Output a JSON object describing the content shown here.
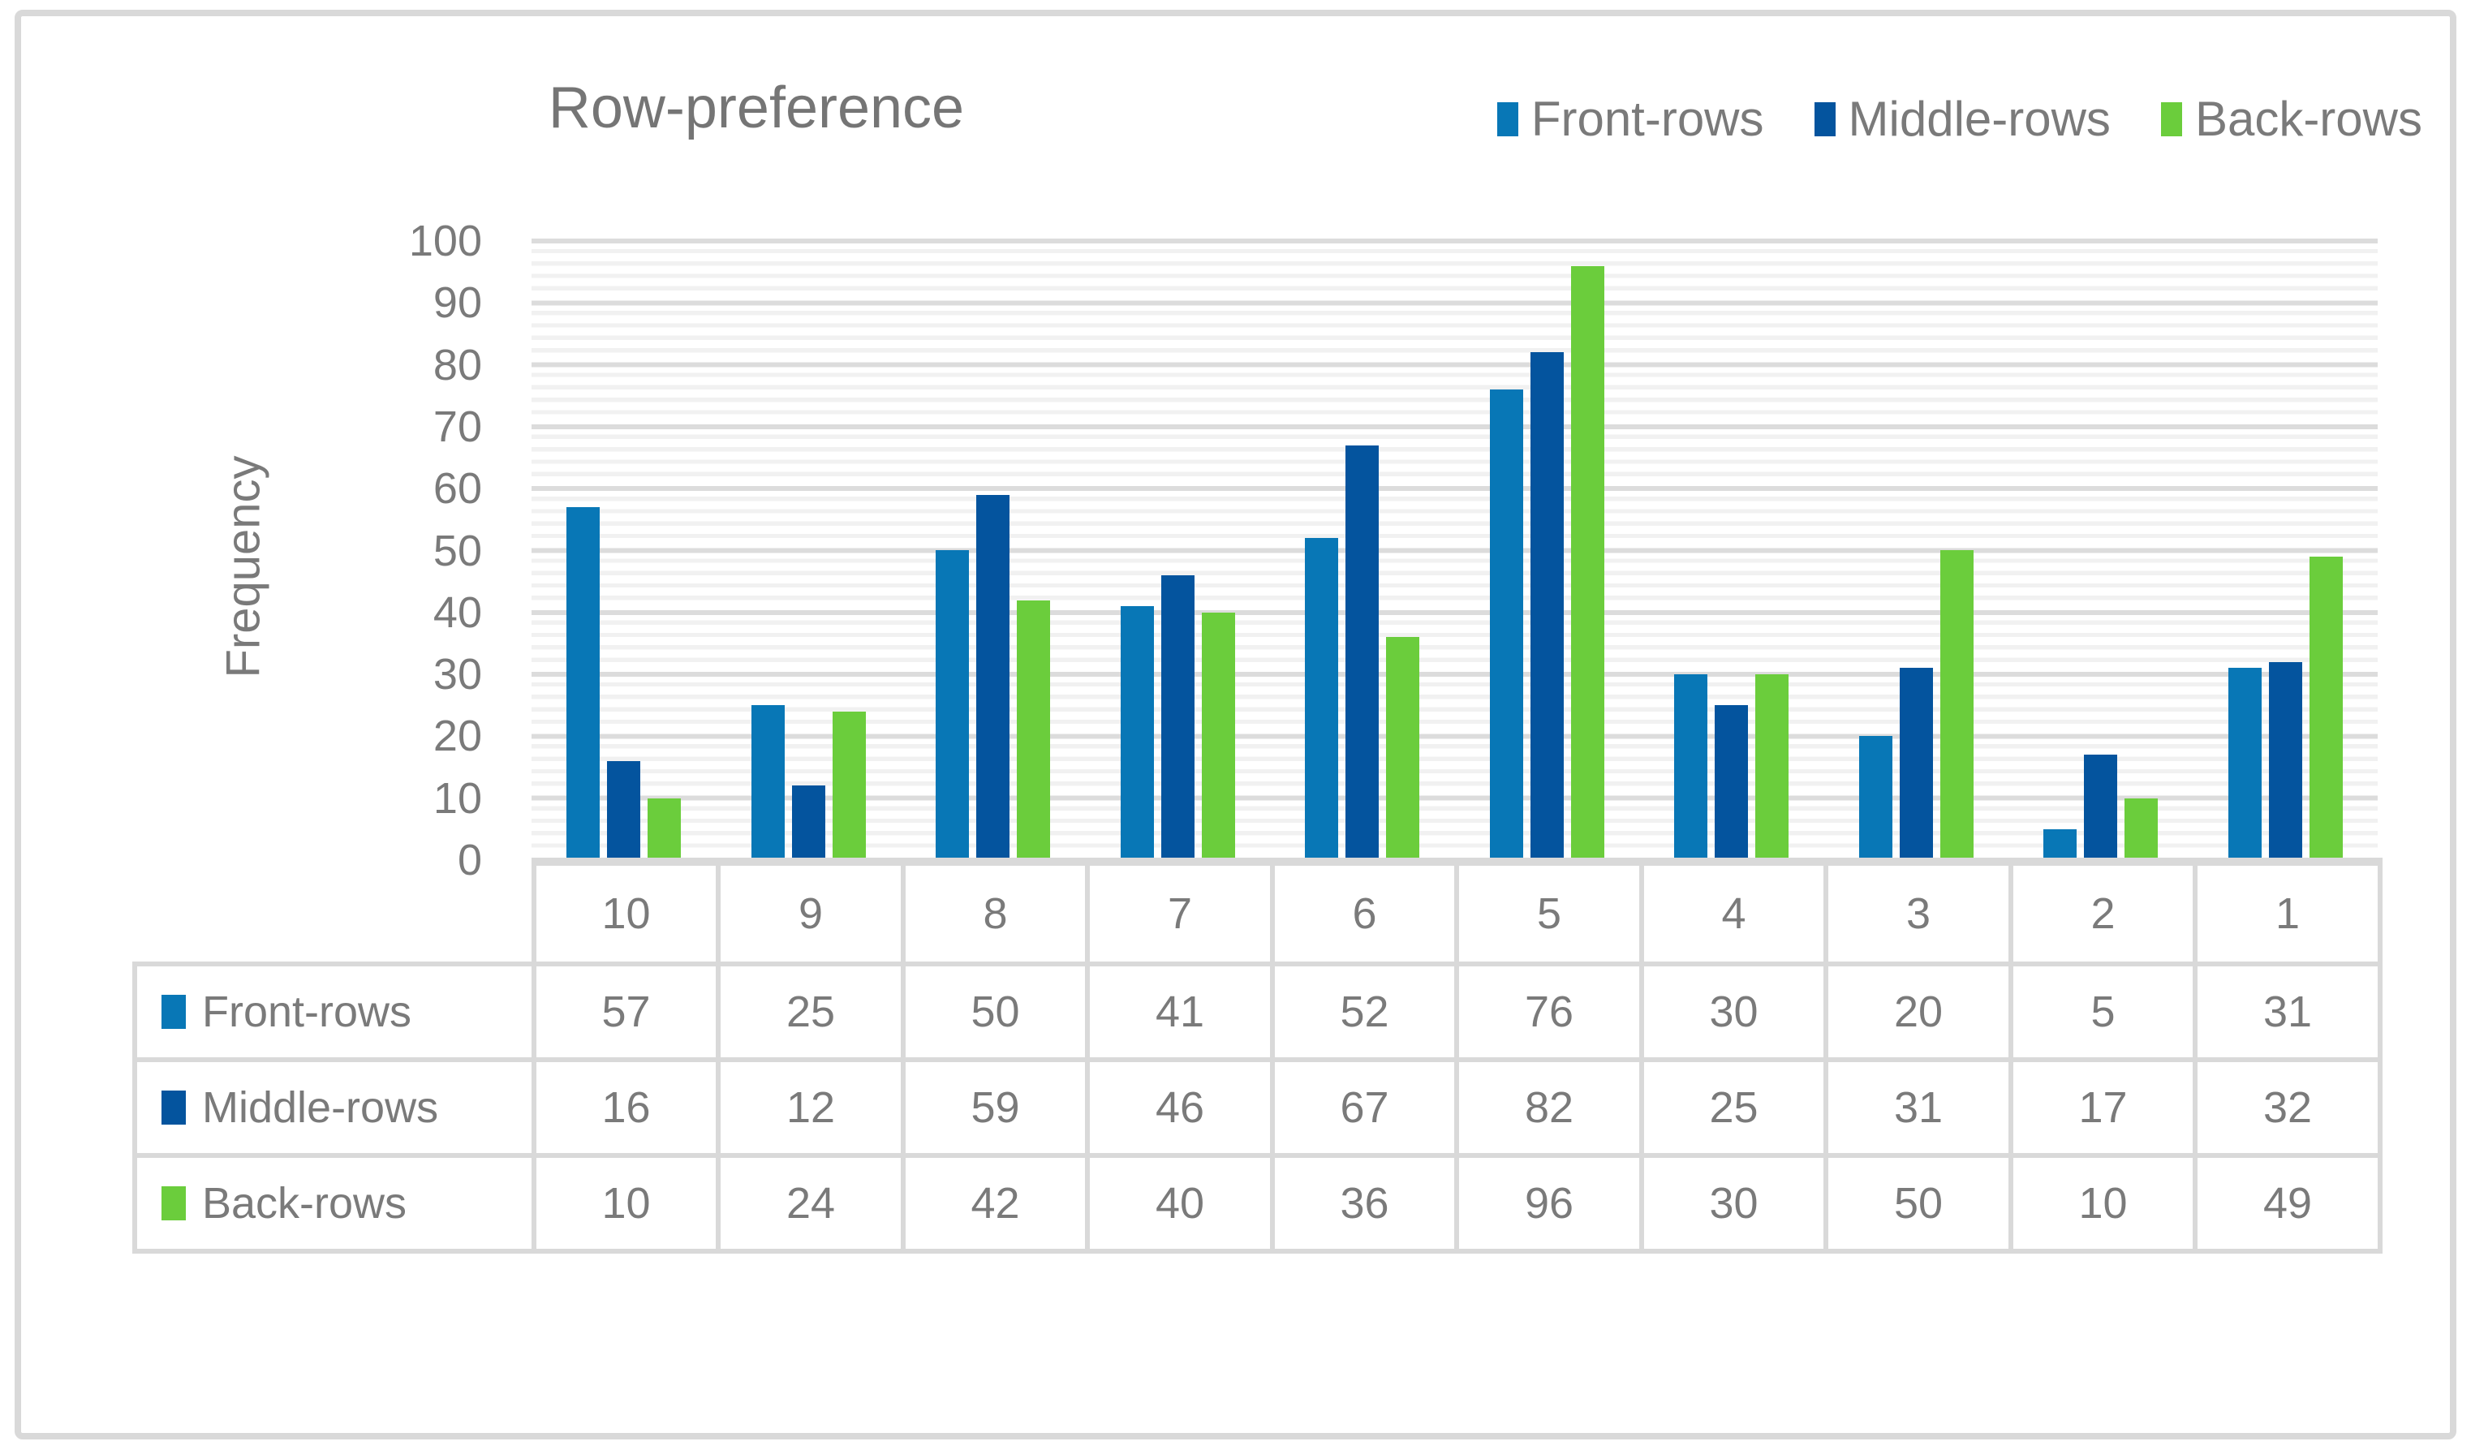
{
  "chart_data": {
    "type": "bar",
    "title": "Row-preference",
    "ylabel": "Frequency",
    "ylim": [
      0,
      100
    ],
    "y_ticks": [
      100,
      90,
      80,
      70,
      60,
      50,
      40,
      30,
      20,
      10,
      0
    ],
    "y_major_step": 10,
    "y_minor_step": 2,
    "grid": true,
    "legend_position": "top-right",
    "data_table_shown": true,
    "categories": [
      "10",
      "9",
      "8",
      "7",
      "6",
      "5",
      "4",
      "3",
      "2",
      "1"
    ],
    "series": [
      {
        "name": "Front-rows",
        "color": "#0877b6",
        "values": [
          57,
          25,
          50,
          41,
          52,
          76,
          30,
          20,
          5,
          31
        ]
      },
      {
        "name": "Middle-rows",
        "color": "#04549e",
        "values": [
          16,
          12,
          59,
          46,
          67,
          82,
          25,
          31,
          17,
          32
        ]
      },
      {
        "name": "Back-rows",
        "color": "#6bcd3c",
        "values": [
          10,
          24,
          42,
          40,
          36,
          96,
          30,
          50,
          10,
          49
        ]
      }
    ]
  },
  "colors": {
    "frame": "#d9d9d9",
    "grid_major": "#dcdcdc",
    "grid_minor": "#f1f1f1",
    "text": "#7a7a7a",
    "background": "#ffffff"
  }
}
